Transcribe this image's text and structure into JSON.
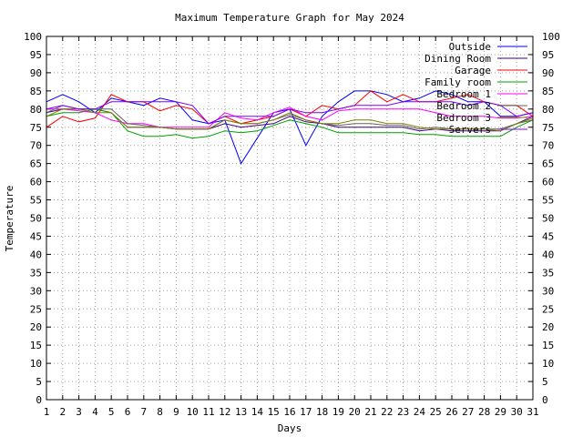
{
  "chart_data": {
    "type": "line",
    "title": "Maximum Temperature Graph for May 2024",
    "xlabel": "Days",
    "ylabel": "Temperature",
    "xlim": [
      1,
      31
    ],
    "ylim": [
      0,
      100
    ],
    "x_ticks": [
      1,
      2,
      3,
      4,
      5,
      6,
      7,
      8,
      9,
      10,
      11,
      12,
      13,
      14,
      15,
      16,
      17,
      18,
      19,
      20,
      21,
      22,
      23,
      24,
      25,
      26,
      27,
      28,
      29,
      30,
      31
    ],
    "y_ticks": [
      0,
      5,
      10,
      15,
      20,
      25,
      30,
      35,
      40,
      45,
      50,
      55,
      60,
      65,
      70,
      75,
      80,
      85,
      90,
      95,
      100
    ],
    "grid": true,
    "legend_position": "top-right",
    "x": [
      1,
      2,
      3,
      4,
      5,
      6,
      7,
      8,
      9,
      10,
      11,
      12,
      13,
      14,
      15,
      16,
      17,
      18,
      19,
      20,
      21,
      22,
      23,
      24,
      25,
      26,
      27,
      28,
      29,
      30,
      31
    ],
    "series": [
      {
        "name": "Outside",
        "color": "#0000ff",
        "values": [
          82,
          84,
          82,
          79,
          83,
          82,
          81,
          83,
          82,
          77,
          76,
          77,
          65,
          72,
          79,
          80,
          70,
          78,
          82,
          85,
          85,
          84,
          82,
          83,
          85,
          84,
          82,
          82,
          78,
          78,
          79
        ]
      },
      {
        "name": "Dining Room",
        "color": "#400080",
        "values": [
          79,
          80,
          80,
          80,
          79,
          75,
          75,
          75,
          74.5,
          74.5,
          74.5,
          76,
          75,
          75.5,
          76,
          78,
          76.5,
          76,
          75,
          75,
          75,
          75,
          75,
          74,
          74.5,
          74,
          74,
          74,
          74,
          76,
          78
        ]
      },
      {
        "name": "Garage",
        "color": "#ff0000",
        "values": [
          75,
          78,
          76.5,
          77.5,
          84,
          82,
          82,
          79.5,
          81,
          80,
          76,
          78,
          76,
          77,
          78,
          80,
          78,
          81,
          80,
          81,
          85,
          82,
          84,
          82,
          82,
          83,
          84,
          82,
          81,
          81,
          78
        ]
      },
      {
        "name": "Family room",
        "color": "#00a000",
        "values": [
          78,
          79,
          79,
          80,
          79,
          74,
          72.5,
          72.5,
          73,
          72,
          72.5,
          74,
          73.5,
          74,
          75.5,
          77,
          76,
          75,
          73.5,
          73.5,
          73.5,
          73.5,
          73.5,
          73,
          73,
          72.5,
          72.5,
          72.5,
          72.5,
          75,
          77
        ]
      },
      {
        "name": "Bedroom 1",
        "color": "#ff00ff",
        "values": [
          80,
          80,
          79.5,
          79,
          77,
          76,
          76,
          75,
          75,
          75,
          75,
          79,
          77.5,
          77,
          79,
          80.5,
          78,
          77,
          79.5,
          80,
          80,
          80,
          80,
          80,
          79,
          78,
          78,
          78,
          77.5,
          77.5,
          78
        ]
      },
      {
        "name": "Bedroom 2",
        "color": "#606060",
        "values": [
          79,
          81,
          80,
          80,
          80,
          76,
          75.5,
          75,
          74.5,
          74.5,
          74.5,
          77,
          76,
          76,
          77,
          78.5,
          77,
          76,
          75.5,
          76,
          76,
          75.5,
          75.5,
          74.5,
          75,
          74.5,
          74.5,
          74.5,
          74.5,
          76,
          77
        ]
      },
      {
        "name": "Bedroom 3",
        "color": "#808000",
        "values": [
          78,
          80,
          80,
          79,
          79,
          75,
          75,
          75,
          74.5,
          74.5,
          74.5,
          77,
          76,
          76,
          77,
          79,
          77,
          76,
          76,
          77,
          77,
          76,
          76,
          75,
          74.5,
          74.5,
          74.5,
          74.5,
          74,
          76,
          77.5
        ]
      },
      {
        "name": "Servers",
        "color": "#8000ff",
        "values": [
          80,
          81,
          80,
          80,
          82,
          82,
          82,
          82,
          82,
          81,
          76,
          78,
          78,
          78,
          78,
          80,
          79,
          79,
          80,
          81,
          81,
          81,
          82,
          82,
          82,
          82,
          81,
          82,
          81,
          78,
          79
        ]
      }
    ]
  }
}
